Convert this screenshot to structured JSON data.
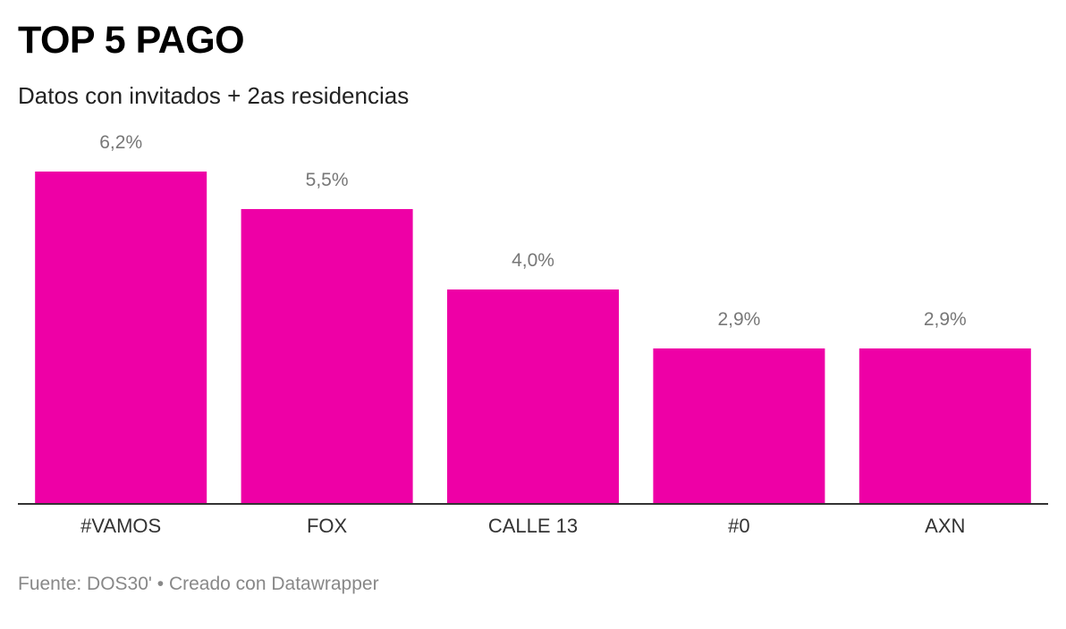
{
  "title": "TOP 5 PAGO",
  "subtitle": "Datos con invitados + 2as residencias",
  "footer": {
    "source": "Fuente: DOS30' • Creado con Datawrapper"
  },
  "colors": {
    "bar": "#ee00a6",
    "axis": "#333333",
    "value_label": "#777777",
    "category_label": "#333333"
  },
  "chart_data": {
    "type": "bar",
    "title": "TOP 5 PAGO",
    "subtitle": "Datos con invitados + 2as residencias",
    "xlabel": "",
    "ylabel": "",
    "categories": [
      "#VAMOS",
      "FOX",
      "CALLE 13",
      "#0",
      "AXN"
    ],
    "values": [
      6.2,
      5.5,
      4.0,
      2.9,
      2.9
    ],
    "value_labels": [
      "6,2%",
      "5,5%",
      "4,0%",
      "2,9%",
      "2,9%"
    ],
    "ylim": [
      0,
      6.2
    ],
    "grid": false,
    "legend": "none"
  }
}
